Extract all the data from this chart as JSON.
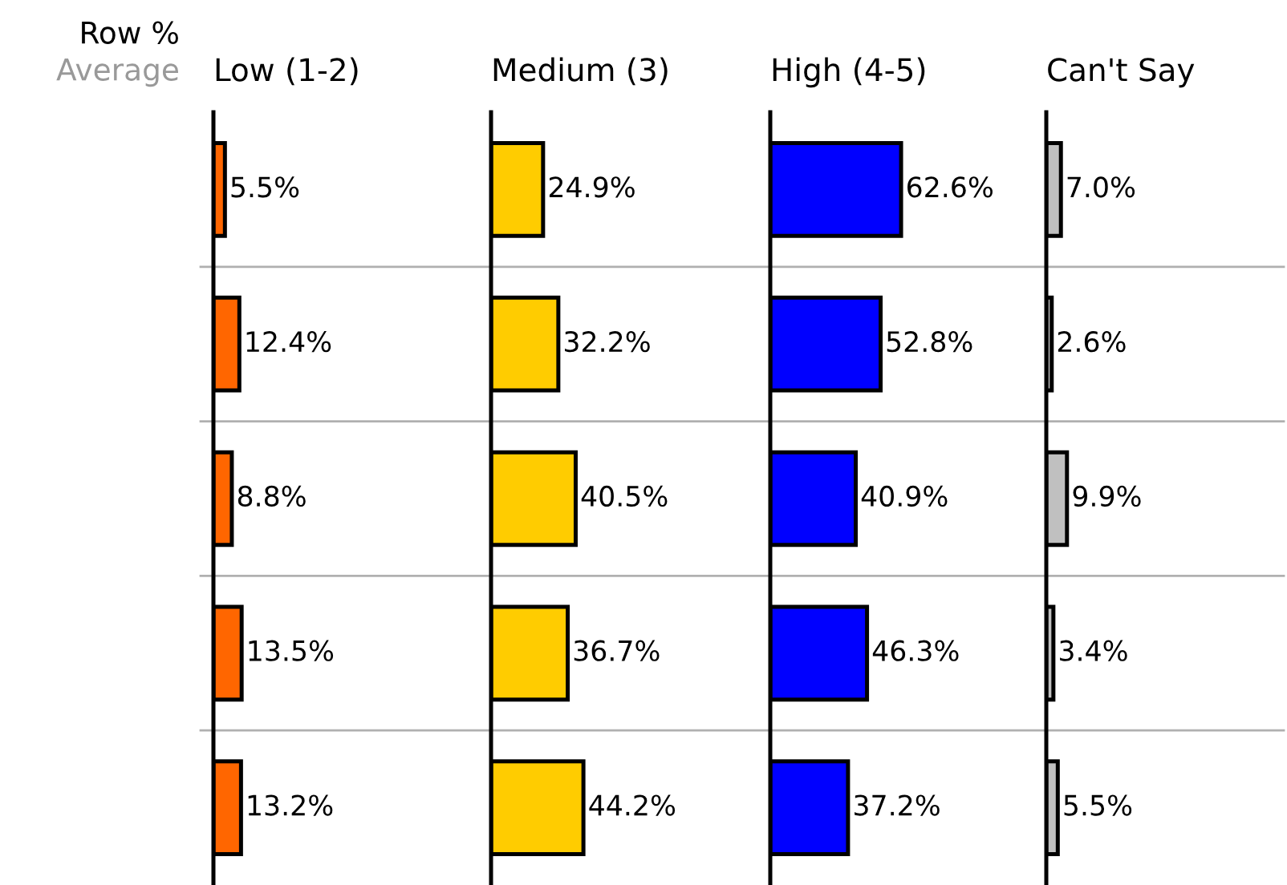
{
  "chart_data": [
    {
      "type": "bar",
      "orientation": "horizontal",
      "title": "Low (1-2)",
      "annotations": [
        "Row %",
        "Average"
      ],
      "categories": [
        null,
        null,
        null,
        null,
        null
      ],
      "values": [
        5.5,
        12.4,
        8.8,
        13.5,
        13.2
      ],
      "color": "#ff6600",
      "value_labels": [
        "5.5%",
        "12.4%",
        "8.8%",
        "13.5%",
        "13.2%"
      ]
    },
    {
      "type": "bar",
      "orientation": "horizontal",
      "title": "Medium (3)",
      "categories": [
        null,
        null,
        null,
        null,
        null
      ],
      "values": [
        24.9,
        32.2,
        40.5,
        36.7,
        44.2
      ],
      "color": "#ffcc00",
      "value_labels": [
        "24.9%",
        "32.2%",
        "40.5%",
        "36.7%",
        "44.2%"
      ]
    },
    {
      "type": "bar",
      "orientation": "horizontal",
      "title": "High (4-5)",
      "categories": [
        null,
        null,
        null,
        null,
        null
      ],
      "values": [
        62.6,
        52.8,
        40.9,
        46.3,
        37.2
      ],
      "color": "#0000ff",
      "value_labels": [
        "62.6%",
        "52.8%",
        "40.9%",
        "46.3%",
        "37.2%"
      ]
    },
    {
      "type": "bar",
      "orientation": "horizontal",
      "title": "Can't Say",
      "categories": [
        null,
        null,
        null,
        null,
        null
      ],
      "values": [
        7.0,
        2.6,
        9.9,
        3.4,
        5.5
      ],
      "color": "#c0c0c0",
      "value_labels": [
        "7.0%",
        "2.6%",
        "9.9%",
        "3.4%",
        "5.5%"
      ]
    }
  ]
}
